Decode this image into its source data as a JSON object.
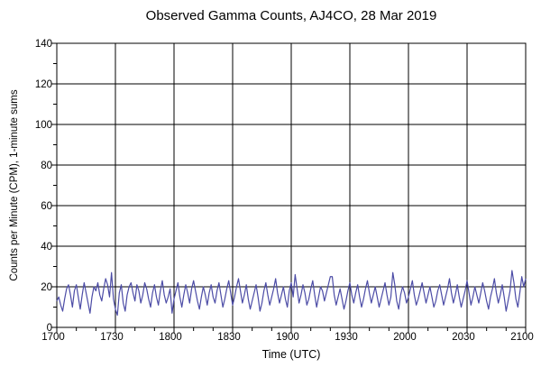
{
  "chart_data": {
    "type": "line",
    "title": "Observed Gamma Counts, AJ4CO, 28 Mar 2019",
    "xlabel": "Time (UTC)",
    "ylabel": "Counts per Minute (CPM), 1-minute sums",
    "x_unit": "minutes after 1700 UTC",
    "x_total_minutes": 240,
    "xtick_major_minutes": [
      0,
      30,
      60,
      90,
      120,
      150,
      180,
      210,
      240
    ],
    "xtick_labels": [
      "1700",
      "1730",
      "1800",
      "1830",
      "1900",
      "1930",
      "2000",
      "2030",
      "2100"
    ],
    "xtick_minor_interval_minutes": 10,
    "ylim": [
      0,
      140
    ],
    "ytick_major": [
      0,
      20,
      40,
      60,
      80,
      100,
      120,
      140
    ],
    "ytick_minor_interval": 10,
    "grid": "major-solid-black",
    "legend_position": "none",
    "line_color": "#4c4ca6",
    "axis_color": "#000000",
    "background_color": "#ffffff",
    "series": [
      {
        "name": "gamma-counts-1min-sums",
        "values": [
          13,
          15,
          11,
          8,
          14,
          19,
          21,
          16,
          10,
          18,
          21,
          15,
          9,
          16,
          22,
          17,
          12,
          7,
          15,
          20,
          18,
          22,
          16,
          13,
          19,
          24,
          21,
          15,
          27,
          14,
          9,
          6,
          17,
          21,
          12,
          8,
          16,
          20,
          22,
          17,
          13,
          21,
          18,
          12,
          16,
          22,
          19,
          14,
          10,
          17,
          21,
          15,
          11,
          18,
          23,
          16,
          12,
          15,
          19,
          7,
          14,
          18,
          22,
          15,
          10,
          16,
          21,
          17,
          12,
          19,
          23,
          18,
          13,
          9,
          15,
          20,
          16,
          11,
          17,
          21,
          15,
          12,
          18,
          22,
          16,
          10,
          14,
          19,
          23,
          17,
          11,
          15,
          20,
          24,
          18,
          12,
          16,
          21,
          14,
          9,
          13,
          17,
          21,
          15,
          8,
          12,
          18,
          22,
          16,
          11,
          15,
          19,
          24,
          17,
          12,
          16,
          20,
          14,
          10,
          18,
          22,
          15,
          26,
          19,
          12,
          16,
          21,
          17,
          11,
          14,
          19,
          23,
          16,
          10,
          15,
          20,
          18,
          13,
          17,
          21,
          25,
          25,
          16,
          11,
          15,
          19,
          14,
          9,
          13,
          18,
          22,
          16,
          12,
          17,
          21,
          15,
          10,
          14,
          19,
          23,
          17,
          12,
          16,
          20,
          15,
          10,
          14,
          18,
          22,
          16,
          11,
          15,
          27,
          21,
          13,
          9,
          16,
          20,
          17,
          12,
          15,
          19,
          23,
          16,
          11,
          14,
          18,
          22,
          17,
          12,
          16,
          20,
          15,
          10,
          13,
          18,
          21,
          16,
          11,
          15,
          19,
          24,
          17,
          12,
          16,
          21,
          15,
          10,
          14,
          18,
          23,
          17,
          11,
          15,
          20,
          16,
          12,
          17,
          22,
          18,
          13,
          9,
          15,
          19,
          24,
          17,
          12,
          16,
          21,
          15,
          8,
          13,
          18,
          28,
          22,
          14,
          10,
          17,
          25,
          20,
          24
        ]
      }
    ]
  }
}
